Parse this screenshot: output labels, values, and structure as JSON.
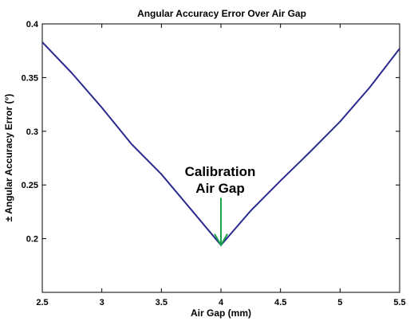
{
  "chart_data": {
    "type": "line",
    "title": "Angular Accuracy Error Over Air Gap",
    "xlabel": "Air Gap (mm)",
    "ylabel": "± Angular Accuracy Error (°)",
    "xlim": [
      2.5,
      5.5
    ],
    "ylim": [
      0.15,
      0.4
    ],
    "x_ticks": [
      2.5,
      3,
      3.5,
      4,
      4.5,
      5,
      5.5
    ],
    "x_tick_labels": [
      "2.5",
      "3",
      "3.5",
      "4",
      "4.5",
      "5",
      "5.5"
    ],
    "y_ticks": [
      0.2,
      0.25,
      0.3,
      0.35,
      0.4
    ],
    "y_tick_labels": [
      "0.2",
      "0.25",
      "0.3",
      "0.35",
      "0.4"
    ],
    "grid": false,
    "series": [
      {
        "color": "#2b2b8f",
        "x": [
          2.5,
          2.75,
          3.0,
          3.25,
          3.5,
          3.75,
          4.0,
          4.25,
          4.5,
          4.75,
          5.0,
          5.25,
          5.5
        ],
        "y": [
          0.383,
          0.354,
          0.322,
          0.288,
          0.26,
          0.227,
          0.194,
          0.226,
          0.254,
          0.281,
          0.309,
          0.341,
          0.377
        ]
      }
    ],
    "annotation": {
      "lines": [
        "Calibration",
        "Air Gap"
      ],
      "arrow_to_x": 4.0,
      "arrow_to_y": 0.194,
      "arrow_from_y": 0.238,
      "color": "#1aa34a"
    }
  }
}
